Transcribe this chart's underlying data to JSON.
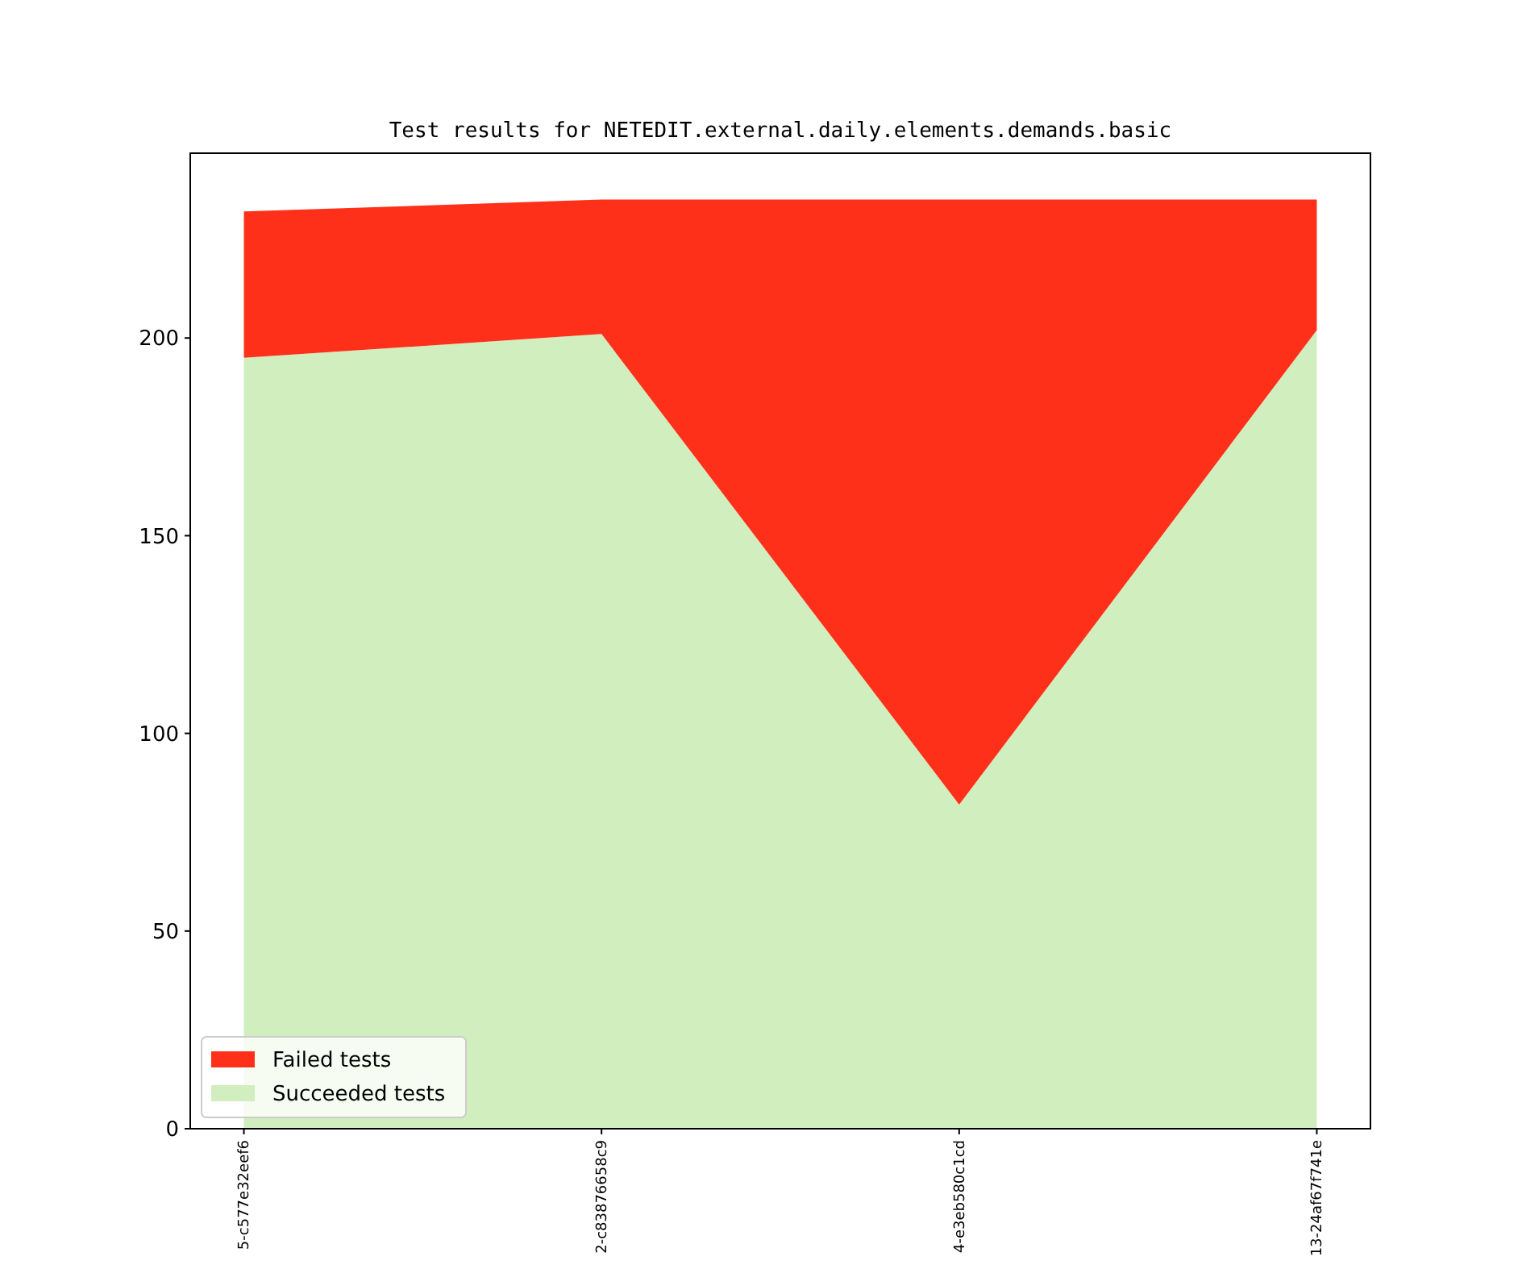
{
  "chart_data": {
    "type": "area",
    "title": "Test results for NETEDIT.external.daily.elements.demands.basic",
    "categories": [
      "5-c577e32eef6",
      "2-c83876658c9",
      "4-e3eb580c1cd",
      "13-24af67f741e"
    ],
    "stacked": true,
    "series": [
      {
        "name": "Succeeded tests",
        "color": "#d0eebe",
        "values": [
          195,
          201,
          82,
          202
        ]
      },
      {
        "name": "Failed tests",
        "color": "#ff3019",
        "values": [
          37,
          34,
          153,
          33
        ]
      }
    ],
    "ylim": [
      0,
      246.75
    ],
    "yticks": [
      0,
      50,
      100,
      150,
      200
    ],
    "legend": "bottom left"
  }
}
